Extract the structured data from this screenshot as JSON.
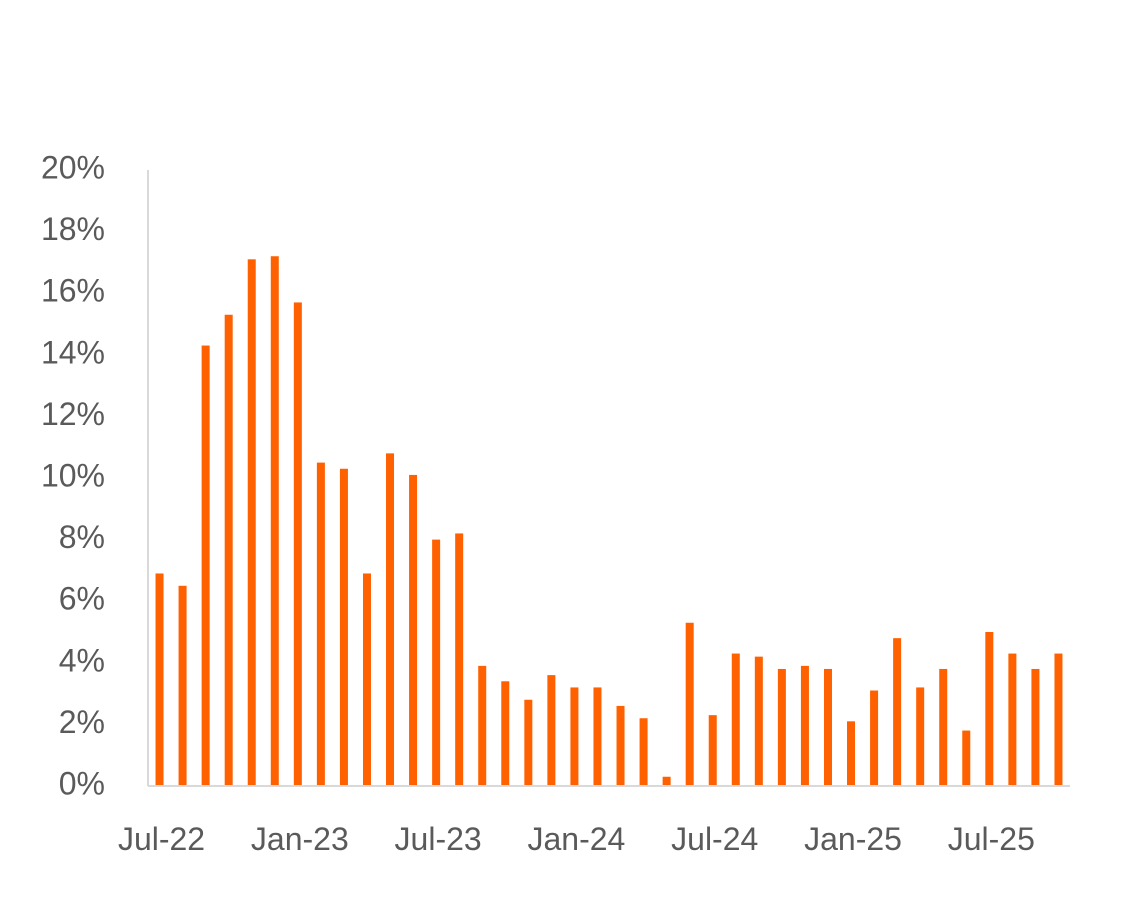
{
  "chart_data": {
    "type": "bar",
    "title": "",
    "xlabel": "",
    "ylabel": "",
    "ylim": [
      0,
      20
    ],
    "yticks": [
      0,
      2,
      4,
      6,
      8,
      10,
      12,
      14,
      16,
      18,
      20
    ],
    "ytick_labels": [
      "0%",
      "2%",
      "4%",
      "6%",
      "8%",
      "10%",
      "12%",
      "14%",
      "16%",
      "18%",
      "20%"
    ],
    "y_unit": "%",
    "grid": false,
    "legend": "none",
    "bar_color": "#ff6000",
    "axis_color": "#d9d9d9",
    "tick_label_color": "#5a5a5a",
    "categories": [
      "Jul-22",
      "Aug-22",
      "Sep-22",
      "Oct-22",
      "Nov-22",
      "Dec-22",
      "Jan-23",
      "Feb-23",
      "Mar-23",
      "Apr-23",
      "May-23",
      "Jun-23",
      "Jul-23",
      "Aug-23",
      "Sep-23",
      "Oct-23",
      "Nov-23",
      "Dec-23",
      "Jan-24",
      "Feb-24",
      "Mar-24",
      "Apr-24",
      "May-24",
      "Jun-24",
      "Jul-24",
      "Aug-24",
      "Sep-24",
      "Oct-24",
      "Nov-24",
      "Dec-24",
      "Jan-25",
      "Feb-25",
      "Mar-25",
      "Apr-25",
      "May-25",
      "Jun-25",
      "Jul-25",
      "Aug-25",
      "Sep-25",
      "Oct-25"
    ],
    "values": [
      6.9,
      6.5,
      14.3,
      15.3,
      17.1,
      17.2,
      15.7,
      10.5,
      10.3,
      6.9,
      10.8,
      10.1,
      8.0,
      8.2,
      3.9,
      3.4,
      2.8,
      3.6,
      3.2,
      3.2,
      2.6,
      2.2,
      0.3,
      5.3,
      2.3,
      4.3,
      4.2,
      3.8,
      3.9,
      3.8,
      2.1,
      3.1,
      4.8,
      3.2,
      3.8,
      1.8,
      5.0,
      4.3,
      3.8,
      4.3
    ],
    "x_tick_labels": [
      {
        "category": "Jul-22",
        "label": "Jul-22"
      },
      {
        "category": "Jan-23",
        "label": "Jan-23"
      },
      {
        "category": "Jul-23",
        "label": "Jul-23"
      },
      {
        "category": "Jan-24",
        "label": "Jan-24"
      },
      {
        "category": "Jul-24",
        "label": "Jul-24"
      },
      {
        "category": "Jan-25",
        "label": "Jan-25"
      },
      {
        "category": "Jul-25",
        "label": "Jul-25"
      }
    ]
  }
}
